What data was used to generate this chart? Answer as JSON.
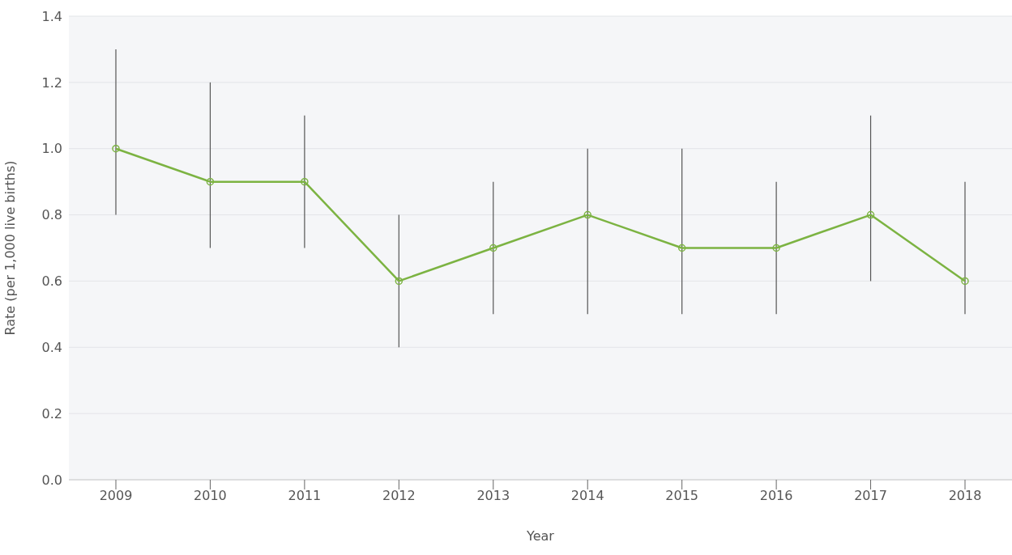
{
  "chart_data": {
    "type": "line",
    "xlabel": "Year",
    "ylabel": "Rate (per 1,000 live births)",
    "categories": [
      "2009",
      "2010",
      "2011",
      "2012",
      "2013",
      "2014",
      "2015",
      "2016",
      "2017",
      "2018"
    ],
    "series": [
      {
        "color": "#7cb342",
        "values": [
          1.0,
          0.9,
          0.9,
          0.6,
          0.7,
          0.8,
          0.7,
          0.7,
          0.8,
          0.6
        ],
        "errors": [
          [
            0.8,
            1.3
          ],
          [
            0.7,
            1.2
          ],
          [
            0.7,
            1.1
          ],
          [
            0.4,
            0.8
          ],
          [
            0.5,
            0.9
          ],
          [
            0.5,
            1.0
          ],
          [
            0.5,
            1.0
          ],
          [
            0.5,
            0.9
          ],
          [
            0.6,
            1.1
          ],
          [
            0.5,
            0.9
          ]
        ]
      }
    ],
    "ylim": [
      0,
      1.4
    ],
    "yticks": [
      {
        "value": 0,
        "label": "0.0"
      },
      {
        "value": 0.2,
        "label": "0.2"
      },
      {
        "value": 0.4,
        "label": "0.4"
      },
      {
        "value": 0.6,
        "label": "0.6"
      },
      {
        "value": 0.8,
        "label": "0.8"
      },
      {
        "value": 1.0,
        "label": "1.0"
      },
      {
        "value": 1.2,
        "label": "1.2"
      },
      {
        "value": 1.4,
        "label": "1.4"
      }
    ],
    "grid": "y",
    "marker": "circle",
    "line_style": "solid",
    "legend": false
  }
}
